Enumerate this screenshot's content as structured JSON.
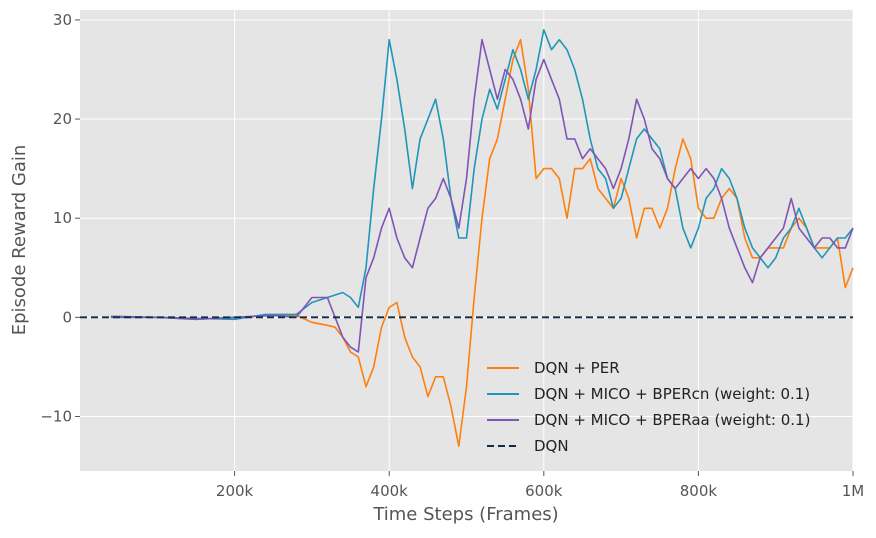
{
  "chart_data": {
    "type": "line",
    "title": "",
    "xlabel": "Time Steps (Frames)",
    "ylabel": "Episode Reward Gain",
    "xlim": [
      0,
      1000000
    ],
    "ylim": [
      -15.5,
      31
    ],
    "x_ticks": [
      {
        "value": 200000,
        "label": "200k"
      },
      {
        "value": 400000,
        "label": "400k"
      },
      {
        "value": 600000,
        "label": "600k"
      },
      {
        "value": 800000,
        "label": "800k"
      },
      {
        "value": 1000000,
        "label": "1M"
      }
    ],
    "y_ticks": [
      {
        "value": -10,
        "label": "−10"
      },
      {
        "value": 0,
        "label": "0"
      },
      {
        "value": 10,
        "label": "10"
      },
      {
        "value": 20,
        "label": "20"
      },
      {
        "value": 30,
        "label": "30"
      }
    ],
    "grid": true,
    "legend_position": "lower-right",
    "colors": {
      "background": "#e5e5e5",
      "grid": "#ffffff",
      "text": "#555555"
    },
    "series": [
      {
        "name": "DQN + PER",
        "color": "#ff7f0e",
        "style": "solid",
        "points": [
          [
            40000,
            0
          ],
          [
            100000,
            0
          ],
          [
            150000,
            -0.2
          ],
          [
            200000,
            0
          ],
          [
            250000,
            0.2
          ],
          [
            280000,
            0.2
          ],
          [
            300000,
            -0.5
          ],
          [
            320000,
            -0.8
          ],
          [
            330000,
            -1
          ],
          [
            340000,
            -2
          ],
          [
            350000,
            -3.5
          ],
          [
            360000,
            -4
          ],
          [
            370000,
            -7
          ],
          [
            380000,
            -5
          ],
          [
            390000,
            -1
          ],
          [
            400000,
            1
          ],
          [
            410000,
            1.5
          ],
          [
            420000,
            -2
          ],
          [
            430000,
            -4
          ],
          [
            440000,
            -5
          ],
          [
            450000,
            -8
          ],
          [
            460000,
            -6
          ],
          [
            470000,
            -6
          ],
          [
            480000,
            -9
          ],
          [
            490000,
            -13
          ],
          [
            500000,
            -7
          ],
          [
            510000,
            2
          ],
          [
            520000,
            10
          ],
          [
            530000,
            16
          ],
          [
            540000,
            18
          ],
          [
            550000,
            22
          ],
          [
            560000,
            26
          ],
          [
            570000,
            28
          ],
          [
            580000,
            23
          ],
          [
            590000,
            14
          ],
          [
            600000,
            15
          ],
          [
            610000,
            15
          ],
          [
            620000,
            14
          ],
          [
            630000,
            10
          ],
          [
            640000,
            15
          ],
          [
            650000,
            15
          ],
          [
            660000,
            16
          ],
          [
            670000,
            13
          ],
          [
            680000,
            12
          ],
          [
            690000,
            11
          ],
          [
            700000,
            14
          ],
          [
            710000,
            12
          ],
          [
            720000,
            8
          ],
          [
            730000,
            11
          ],
          [
            740000,
            11
          ],
          [
            750000,
            9
          ],
          [
            760000,
            11
          ],
          [
            770000,
            15
          ],
          [
            780000,
            18
          ],
          [
            790000,
            16
          ],
          [
            800000,
            11
          ],
          [
            810000,
            10
          ],
          [
            820000,
            10
          ],
          [
            830000,
            12
          ],
          [
            840000,
            13
          ],
          [
            850000,
            12
          ],
          [
            860000,
            8
          ],
          [
            870000,
            6
          ],
          [
            880000,
            6
          ],
          [
            890000,
            7
          ],
          [
            900000,
            7
          ],
          [
            910000,
            7
          ],
          [
            920000,
            9
          ],
          [
            930000,
            10
          ],
          [
            940000,
            9
          ],
          [
            950000,
            7
          ],
          [
            960000,
            7
          ],
          [
            970000,
            7
          ],
          [
            980000,
            8
          ],
          [
            990000,
            3
          ],
          [
            1000000,
            5
          ]
        ]
      },
      {
        "name": "DQN + MICO + BPERcn (weight: 0.1)",
        "color": "#2096ba",
        "style": "solid",
        "points": [
          [
            40000,
            0
          ],
          [
            100000,
            0
          ],
          [
            150000,
            -0.1
          ],
          [
            200000,
            -0.2
          ],
          [
            240000,
            0.3
          ],
          [
            280000,
            0.3
          ],
          [
            300000,
            1.5
          ],
          [
            320000,
            2
          ],
          [
            340000,
            2.5
          ],
          [
            350000,
            2
          ],
          [
            360000,
            1
          ],
          [
            370000,
            5
          ],
          [
            380000,
            13
          ],
          [
            390000,
            20
          ],
          [
            400000,
            28
          ],
          [
            410000,
            24
          ],
          [
            420000,
            19
          ],
          [
            430000,
            13
          ],
          [
            440000,
            18
          ],
          [
            450000,
            20
          ],
          [
            460000,
            22
          ],
          [
            470000,
            18
          ],
          [
            480000,
            12
          ],
          [
            490000,
            8
          ],
          [
            500000,
            8
          ],
          [
            510000,
            15
          ],
          [
            520000,
            20
          ],
          [
            530000,
            23
          ],
          [
            540000,
            21
          ],
          [
            550000,
            24
          ],
          [
            560000,
            27
          ],
          [
            570000,
            25
          ],
          [
            580000,
            22
          ],
          [
            590000,
            25
          ],
          [
            600000,
            29
          ],
          [
            610000,
            27
          ],
          [
            620000,
            28
          ],
          [
            630000,
            27
          ],
          [
            640000,
            25
          ],
          [
            650000,
            22
          ],
          [
            660000,
            18
          ],
          [
            670000,
            15
          ],
          [
            680000,
            14
          ],
          [
            690000,
            11
          ],
          [
            700000,
            12
          ],
          [
            710000,
            15
          ],
          [
            720000,
            18
          ],
          [
            730000,
            19
          ],
          [
            740000,
            18
          ],
          [
            750000,
            17
          ],
          [
            760000,
            14
          ],
          [
            770000,
            13
          ],
          [
            780000,
            9
          ],
          [
            790000,
            7
          ],
          [
            800000,
            9
          ],
          [
            810000,
            12
          ],
          [
            820000,
            13
          ],
          [
            830000,
            15
          ],
          [
            840000,
            14
          ],
          [
            850000,
            12
          ],
          [
            860000,
            9
          ],
          [
            870000,
            7
          ],
          [
            880000,
            6
          ],
          [
            890000,
            5
          ],
          [
            900000,
            6
          ],
          [
            910000,
            8
          ],
          [
            920000,
            9
          ],
          [
            930000,
            11
          ],
          [
            940000,
            9
          ],
          [
            950000,
            7
          ],
          [
            960000,
            6
          ],
          [
            970000,
            7
          ],
          [
            980000,
            8
          ],
          [
            990000,
            8
          ],
          [
            1000000,
            9
          ]
        ]
      },
      {
        "name": "DQN + MICO + BPERaa (weight: 0.1)",
        "color": "#7f55b5",
        "style": "solid",
        "points": [
          [
            40000,
            0.1
          ],
          [
            100000,
            0
          ],
          [
            150000,
            -0.2
          ],
          [
            200000,
            0
          ],
          [
            250000,
            0.2
          ],
          [
            280000,
            0
          ],
          [
            300000,
            2
          ],
          [
            320000,
            2
          ],
          [
            330000,
            0
          ],
          [
            340000,
            -2
          ],
          [
            350000,
            -3
          ],
          [
            360000,
            -3.5
          ],
          [
            370000,
            4
          ],
          [
            380000,
            6
          ],
          [
            390000,
            9
          ],
          [
            400000,
            11
          ],
          [
            410000,
            8
          ],
          [
            420000,
            6
          ],
          [
            430000,
            5
          ],
          [
            440000,
            8
          ],
          [
            450000,
            11
          ],
          [
            460000,
            12
          ],
          [
            470000,
            14
          ],
          [
            480000,
            12
          ],
          [
            490000,
            9
          ],
          [
            500000,
            14
          ],
          [
            510000,
            22
          ],
          [
            520000,
            28
          ],
          [
            530000,
            25
          ],
          [
            540000,
            22
          ],
          [
            550000,
            25
          ],
          [
            560000,
            24
          ],
          [
            570000,
            22
          ],
          [
            580000,
            19
          ],
          [
            590000,
            24
          ],
          [
            600000,
            26
          ],
          [
            610000,
            24
          ],
          [
            620000,
            22
          ],
          [
            630000,
            18
          ],
          [
            640000,
            18
          ],
          [
            650000,
            16
          ],
          [
            660000,
            17
          ],
          [
            670000,
            16
          ],
          [
            680000,
            15
          ],
          [
            690000,
            13
          ],
          [
            700000,
            15
          ],
          [
            710000,
            18
          ],
          [
            720000,
            22
          ],
          [
            730000,
            20
          ],
          [
            740000,
            17
          ],
          [
            750000,
            16
          ],
          [
            760000,
            14
          ],
          [
            770000,
            13
          ],
          [
            780000,
            14
          ],
          [
            790000,
            15
          ],
          [
            800000,
            14
          ],
          [
            810000,
            15
          ],
          [
            820000,
            14
          ],
          [
            830000,
            12
          ],
          [
            840000,
            9
          ],
          [
            850000,
            7
          ],
          [
            860000,
            5
          ],
          [
            870000,
            3.5
          ],
          [
            880000,
            6
          ],
          [
            890000,
            7
          ],
          [
            900000,
            8
          ],
          [
            910000,
            9
          ],
          [
            920000,
            12
          ],
          [
            930000,
            9
          ],
          [
            940000,
            8
          ],
          [
            950000,
            7
          ],
          [
            960000,
            8
          ],
          [
            970000,
            8
          ],
          [
            980000,
            7
          ],
          [
            990000,
            7
          ],
          [
            1000000,
            9
          ]
        ]
      },
      {
        "name": "DQN",
        "color": "#0c2c4a",
        "style": "dashed",
        "points": [
          [
            0,
            0
          ],
          [
            1000000,
            0
          ]
        ]
      }
    ]
  }
}
